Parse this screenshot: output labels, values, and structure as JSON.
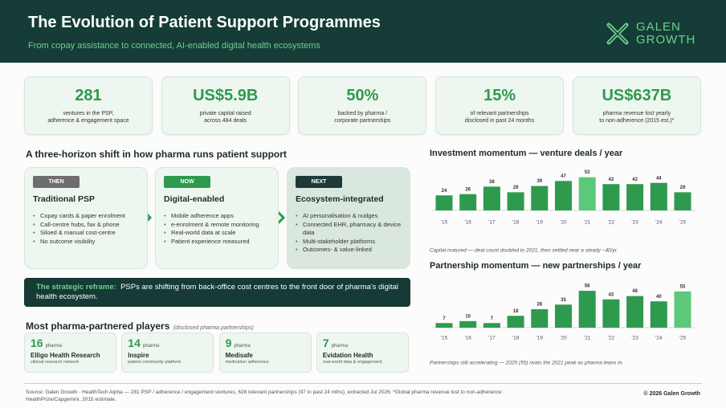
{
  "header": {
    "title": "The Evolution of Patient Support Programmes",
    "subtitle": "From copay assistance to connected, AI-enabled digital health ecosystems",
    "logo": [
      "GALEN",
      "GROWTH"
    ]
  },
  "stats": [
    {
      "value": "281",
      "label": [
        "ventures in the PSP,",
        "adherence & engagement space"
      ]
    },
    {
      "value": "US$5.9B",
      "label": [
        "private capital raised",
        "across 484 deals"
      ]
    },
    {
      "value": "50%",
      "label": [
        "backed by pharma /",
        "corporate partnerships"
      ]
    },
    {
      "value": "15%",
      "label": [
        "of relevant partnerships",
        "disclosed in past 24 months"
      ]
    },
    {
      "value": "US$637B",
      "label": [
        "pharma revenue lost yearly",
        "to non-adherence (2015 est.)*"
      ]
    }
  ],
  "horizons": {
    "title": "A three-horizon shift in how pharma runs patient support",
    "cards": [
      {
        "tag": "THEN",
        "title": "Traditional PSP",
        "bullets": [
          "Copay cards & paper enrolment",
          "Call-centre hubs, fax & phone",
          "Siloed & manual cost-centre",
          "No outcome visibility"
        ]
      },
      {
        "tag": "NOW",
        "title": "Digital-enabled",
        "bullets": [
          "Mobile adherence apps",
          "e-enrolment & remote monitoring",
          "Real-world data at scale",
          "Patient experience measured"
        ]
      },
      {
        "tag": "NEXT",
        "title": "Ecosystem-integrated",
        "bullets": [
          "AI personalisation & nudges",
          "Connected EHR, pharmacy & device data",
          "Multi-stakeholder platforms",
          "Outcomes- & value-linked"
        ]
      }
    ]
  },
  "reframe": {
    "lead": "The strategic reframe:",
    "text": "PSPs are shifting from back-office cost centres to the front door of pharma's digital health ecosystem."
  },
  "players": {
    "title": "Most pharma-partnered players",
    "note": "(disclosed pharma partnerships)",
    "items": [
      {
        "count": 16,
        "unit": "pharma",
        "name": "Elligo Health Research",
        "desc": "clinical research network"
      },
      {
        "count": 14,
        "unit": "pharma",
        "name": "Inspire",
        "desc": "patient community platform"
      },
      {
        "count": 9,
        "unit": "pharma",
        "name": "Medisafe",
        "desc": "medication adherence"
      },
      {
        "count": 7,
        "unit": "pharma",
        "name": "Evidation Health",
        "desc": "real-world data & engagement"
      }
    ]
  },
  "chart_data": [
    {
      "type": "bar",
      "title": "Investment momentum — venture deals / year",
      "categories": [
        "'15",
        "'16",
        "'17",
        "'18",
        "'19",
        "'20",
        "'21",
        "'22",
        "'23",
        "'24",
        "'25"
      ],
      "values": [
        24,
        26,
        38,
        29,
        39,
        47,
        53,
        42,
        42,
        44,
        29
      ],
      "colors": [
        "#2e9a4e",
        "#2e9a4e",
        "#2e9a4e",
        "#2e9a4e",
        "#2e9a4e",
        "#2e9a4e",
        "#5cc97a",
        "#2e9a4e",
        "#2e9a4e",
        "#2e9a4e",
        "#2e9a4e"
      ],
      "caption": "Capital matured — deal count doubled to 2021, then settled near a steady ~40/yr."
    },
    {
      "type": "bar",
      "title": "Partnership momentum — new partnerships / year",
      "categories": [
        "'15",
        "'16",
        "'17",
        "'18",
        "'19",
        "'20",
        "'21",
        "'22",
        "'23",
        "'24",
        "'25"
      ],
      "values": [
        7,
        10,
        7,
        18,
        28,
        35,
        56,
        43,
        48,
        40,
        55
      ],
      "colors": [
        "#2e9a4e",
        "#2e9a4e",
        "#2e9a4e",
        "#2e9a4e",
        "#2e9a4e",
        "#2e9a4e",
        "#2e9a4e",
        "#2e9a4e",
        "#2e9a4e",
        "#2e9a4e",
        "#5cc97a"
      ],
      "caption": "Partnerships still accelerating — 2025 (55) rivals the 2021 peak as pharma leans in."
    }
  ],
  "footer": {
    "source": "Source: Galen Growth · HealthTech Alpha — 281 PSP / adherence / engagement ventures, 628 relevant partnerships (97 in past 24 mths), extracted Jul 2026. *Global pharma revenue lost to non-adherence: HealthPrize/Capgemini, 2015 estimate.",
    "copyright": "© 2026 Galen Growth"
  }
}
